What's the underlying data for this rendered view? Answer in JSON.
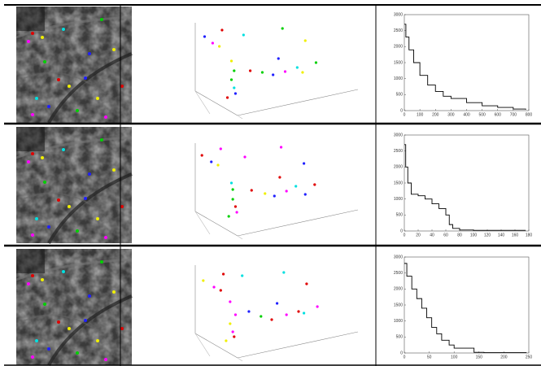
{
  "chart_data": [
    {
      "type": "scatter",
      "xlim": [
        0,
        100
      ],
      "ylim": [
        0,
        100
      ],
      "x": [
        10,
        23,
        39,
        68,
        16,
        21,
        85,
        30,
        65,
        32,
        44,
        53,
        61,
        70,
        79,
        83,
        93,
        30,
        32,
        33,
        27
      ],
      "values": [
        80,
        88,
        82,
        90,
        72,
        68,
        75,
        50,
        53,
        38,
        38,
        36,
        33,
        37,
        42,
        36,
        48,
        27,
        17,
        10,
        5
      ],
      "point_colors": [
        "#2020ff",
        "#e00000",
        "#00e0e0",
        "#00d000",
        "#ff00ff",
        "#f0f000",
        "#f0f000",
        "#f0f000",
        "#2020ff",
        "#00d000",
        "#e00000",
        "#00d000",
        "#2020ff",
        "#ff00ff",
        "#00e0e0",
        "#f0f000",
        "#00d000",
        "#00d000",
        "#00e0e0",
        "#2020ff",
        "#e00000"
      ]
    },
    {
      "type": "line",
      "step": true,
      "color": "#000000",
      "xlim": [
        0,
        800
      ],
      "xticks": [
        0,
        100,
        200,
        300,
        400,
        500,
        600,
        700,
        800
      ],
      "ylim": [
        0,
        3000
      ],
      "yticks": [
        0,
        500,
        1000,
        1500,
        2000,
        2500,
        3000
      ],
      "x": [
        0,
        10,
        30,
        60,
        100,
        150,
        200,
        250,
        300,
        400,
        500,
        600,
        700,
        780
      ],
      "values": [
        2700,
        2300,
        1900,
        1500,
        1100,
        800,
        600,
        450,
        380,
        250,
        150,
        100,
        50,
        30
      ]
    },
    {
      "type": "scatter",
      "xlim": [
        0,
        100
      ],
      "ylim": [
        0,
        100
      ],
      "x": [
        8,
        22,
        40,
        67,
        15,
        20,
        84,
        30,
        66,
        31,
        45,
        55,
        62,
        71,
        78,
        85,
        92,
        31,
        33,
        34,
        28
      ],
      "values": [
        82,
        90,
        80,
        92,
        74,
        70,
        72,
        48,
        55,
        40,
        39,
        35,
        32,
        38,
        44,
        34,
        46,
        28,
        19,
        12,
        7
      ],
      "point_colors": [
        "#e00000",
        "#ff00ff",
        "#ff00ff",
        "#ff00ff",
        "#2020ff",
        "#f0f000",
        "#2020ff",
        "#00e0e0",
        "#e00000",
        "#00d000",
        "#e00000",
        "#f0f000",
        "#2020ff",
        "#ff00ff",
        "#00e0e0",
        "#2020ff",
        "#e00000",
        "#00d000",
        "#e00000",
        "#ff00ff",
        "#00d000"
      ]
    },
    {
      "type": "line",
      "step": true,
      "color": "#000000",
      "xlim": [
        0,
        180
      ],
      "xticks": [
        0,
        20,
        40,
        60,
        80,
        100,
        120,
        140,
        160,
        180
      ],
      "ylim": [
        0,
        3000
      ],
      "yticks": [
        0,
        500,
        1000,
        1500,
        2000,
        2500,
        3000
      ],
      "x": [
        0,
        2,
        5,
        10,
        20,
        30,
        40,
        50,
        60,
        65,
        70,
        80,
        100,
        175
      ],
      "values": [
        2700,
        2000,
        1500,
        1150,
        1100,
        1000,
        850,
        700,
        500,
        200,
        80,
        30,
        20,
        10
      ]
    },
    {
      "type": "scatter",
      "xlim": [
        0,
        100
      ],
      "ylim": [
        0,
        100
      ],
      "x": [
        9,
        24,
        38,
        69,
        17,
        22,
        86,
        29,
        64,
        33,
        43,
        52,
        60,
        71,
        80,
        84,
        94,
        29,
        31,
        32,
        26
      ],
      "values": [
        78,
        86,
        84,
        88,
        70,
        66,
        74,
        52,
        50,
        36,
        40,
        34,
        30,
        36,
        40,
        38,
        46,
        25,
        15,
        9,
        4
      ],
      "point_colors": [
        "#f0f000",
        "#e00000",
        "#00e0e0",
        "#00e0e0",
        "#ff00ff",
        "#e00000",
        "#e00000",
        "#ff00ff",
        "#2020ff",
        "#ff00ff",
        "#2020ff",
        "#00d000",
        "#e00000",
        "#ff00ff",
        "#e00000",
        "#00e0e0",
        "#ff00ff",
        "#f0f000",
        "#ff00ff",
        "#e00000",
        "#f0f000"
      ]
    },
    {
      "type": "line",
      "step": true,
      "color": "#000000",
      "xlim": [
        0,
        250
      ],
      "xticks": [
        0,
        50,
        100,
        150,
        200,
        250
      ],
      "ylim": [
        0,
        3000
      ],
      "yticks": [
        0,
        500,
        1000,
        1500,
        2000,
        2500,
        3000
      ],
      "x": [
        0,
        5,
        15,
        25,
        35,
        45,
        55,
        65,
        75,
        90,
        100,
        140,
        160,
        245
      ],
      "values": [
        2800,
        2400,
        2000,
        1700,
        1400,
        1100,
        800,
        600,
        400,
        250,
        150,
        20,
        10,
        5
      ]
    }
  ]
}
